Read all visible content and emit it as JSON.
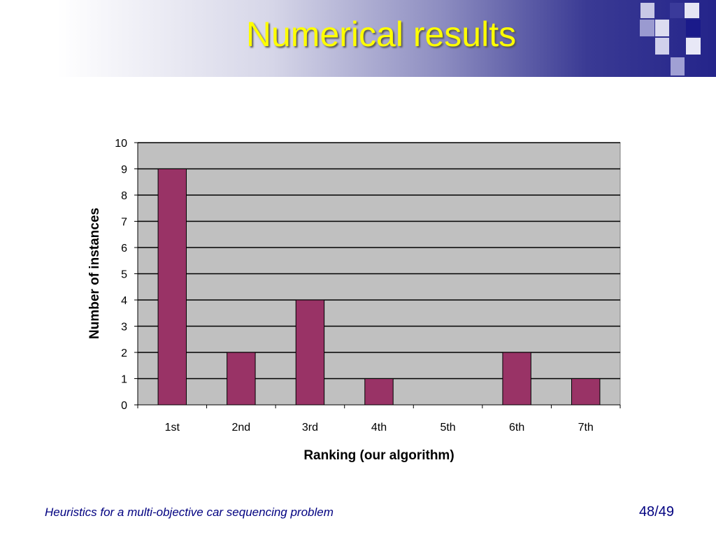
{
  "slide": {
    "title": "Numerical results",
    "footer": "Heuristics for a multi-objective car sequencing problem",
    "page": "48/49"
  },
  "colors": {
    "bar": "#993366",
    "plot_background": "#c0c0c0",
    "title_text": "#ffff00",
    "footer_text": "#000080"
  },
  "chart_data": {
    "type": "bar",
    "categories": [
      "1st",
      "2nd",
      "3rd",
      "4th",
      "5th",
      "6th",
      "7th"
    ],
    "values": [
      9,
      2,
      4,
      1,
      0,
      2,
      1
    ],
    "title": "",
    "xlabel": "Ranking (our algorithm)",
    "ylabel": "Number of instances",
    "ylim": [
      0,
      10
    ],
    "yticks": [
      0,
      1,
      2,
      3,
      4,
      5,
      6,
      7,
      8,
      9,
      10
    ],
    "grid": true,
    "legend": "none"
  }
}
